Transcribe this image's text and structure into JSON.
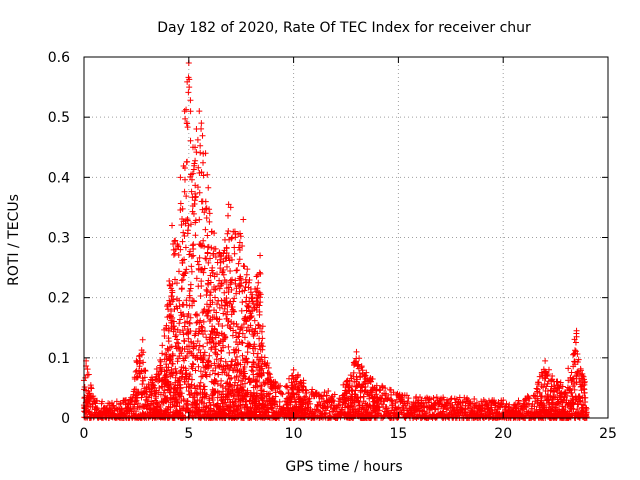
{
  "chart_data": {
    "type": "scatter",
    "title": "Day 182 of 2020, Rate Of TEC Index for receiver chur",
    "xlabel": "GPS time / hours",
    "ylabel": "ROTI / TECUs",
    "xlim": [
      0,
      25
    ],
    "ylim": [
      0,
      0.6
    ],
    "xticks": [
      "0",
      "5",
      "10",
      "15",
      "20",
      "25"
    ],
    "yticks": [
      "0",
      "0.1",
      "0.2",
      "0.3",
      "0.4",
      "0.5",
      "0.6"
    ],
    "grid": true,
    "marker": "+",
    "series_color": "#ff0000",
    "envelope": [
      [
        0.0,
        0.095
      ],
      [
        0.2,
        0.08
      ],
      [
        0.5,
        0.03
      ],
      [
        1.0,
        0.028
      ],
      [
        1.5,
        0.028
      ],
      [
        2.0,
        0.03
      ],
      [
        2.3,
        0.035
      ],
      [
        2.5,
        0.09
      ],
      [
        2.8,
        0.13
      ],
      [
        3.0,
        0.05
      ],
      [
        3.3,
        0.075
      ],
      [
        3.6,
        0.09
      ],
      [
        3.9,
        0.17
      ],
      [
        4.1,
        0.24
      ],
      [
        4.3,
        0.32
      ],
      [
        4.5,
        0.3
      ],
      [
        4.7,
        0.4
      ],
      [
        4.8,
        0.5
      ],
      [
        5.0,
        0.6
      ],
      [
        5.2,
        0.45
      ],
      [
        5.4,
        0.5
      ],
      [
        5.6,
        0.48
      ],
      [
        5.8,
        0.45
      ],
      [
        6.0,
        0.34
      ],
      [
        6.3,
        0.3
      ],
      [
        6.6,
        0.27
      ],
      [
        6.9,
        0.36
      ],
      [
        7.1,
        0.31
      ],
      [
        7.5,
        0.32
      ],
      [
        7.8,
        0.26
      ],
      [
        8.1,
        0.21
      ],
      [
        8.4,
        0.27
      ],
      [
        8.6,
        0.11
      ],
      [
        9.0,
        0.065
      ],
      [
        9.5,
        0.05
      ],
      [
        10.0,
        0.08
      ],
      [
        11.0,
        0.045
      ],
      [
        12.0,
        0.045
      ],
      [
        12.7,
        0.07
      ],
      [
        13.0,
        0.11
      ],
      [
        13.5,
        0.075
      ],
      [
        14.0,
        0.06
      ],
      [
        15.0,
        0.04
      ],
      [
        16.0,
        0.035
      ],
      [
        17.0,
        0.035
      ],
      [
        18.0,
        0.035
      ],
      [
        19.0,
        0.03
      ],
      [
        20.0,
        0.03
      ],
      [
        21.0,
        0.03
      ],
      [
        21.5,
        0.05
      ],
      [
        22.0,
        0.095
      ],
      [
        22.4,
        0.065
      ],
      [
        22.8,
        0.06
      ],
      [
        23.2,
        0.09
      ],
      [
        23.5,
        0.15
      ],
      [
        23.8,
        0.07
      ],
      [
        24.0,
        0.06
      ]
    ],
    "highlight_points": [
      [
        0.1,
        0.095
      ],
      [
        2.5,
        0.095
      ],
      [
        2.8,
        0.13
      ],
      [
        4.2,
        0.32
      ],
      [
        4.6,
        0.4
      ],
      [
        4.8,
        0.51
      ],
      [
        4.9,
        0.49
      ],
      [
        5.0,
        0.59
      ],
      [
        5.2,
        0.45
      ],
      [
        5.5,
        0.51
      ],
      [
        5.6,
        0.49
      ],
      [
        5.8,
        0.44
      ],
      [
        6.0,
        0.34
      ],
      [
        7.0,
        0.35
      ],
      [
        7.2,
        0.31
      ],
      [
        7.6,
        0.33
      ],
      [
        8.4,
        0.27
      ],
      [
        10.0,
        0.08
      ],
      [
        13.0,
        0.11
      ],
      [
        22.0,
        0.095
      ],
      [
        23.5,
        0.145
      ],
      [
        23.5,
        0.135
      ]
    ]
  }
}
